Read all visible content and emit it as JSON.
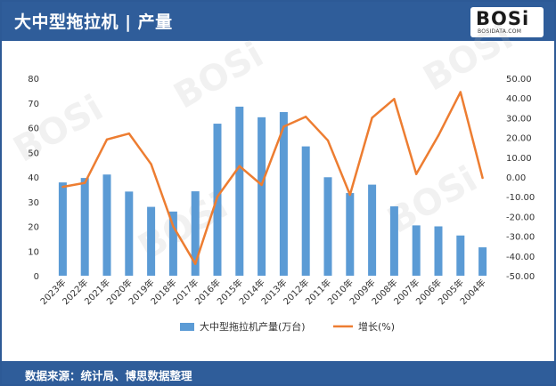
{
  "header": {
    "title": "大中型拖拉机 | 产量",
    "logo_text": "BOSi",
    "logo_sub": "BOSIDATA.COM"
  },
  "footer": {
    "source": "数据来源：统计局、博思数据整理"
  },
  "colors": {
    "header_bg": "#2f5d9a",
    "bar": "#5b9bd5",
    "line": "#ed7d31"
  },
  "chart_data": {
    "type": "bar",
    "categories": [
      "2023年",
      "2022年",
      "2021年",
      "2020年",
      "2019年",
      "2018年",
      "2017年",
      "2016年",
      "2015年",
      "2014年",
      "2013年",
      "2012年",
      "2011年",
      "2010年",
      "2009年",
      "2008年",
      "2007年",
      "2006年",
      "2005年",
      "2004年"
    ],
    "series": [
      {
        "name": "大中型拖拉机产量(万台)",
        "type": "bar",
        "axis": "left",
        "values": [
          37.8,
          39.6,
          41.0,
          34.1,
          27.9,
          26.0,
          34.2,
          61.6,
          68.5,
          64.2,
          66.3,
          52.4,
          39.9,
          33.5,
          36.9,
          28.1,
          20.4,
          20.0,
          16.3,
          11.5
        ]
      },
      {
        "name": "增长(%)",
        "type": "line",
        "axis": "right",
        "values": [
          -5.0,
          -3.0,
          19.0,
          22.0,
          6.5,
          -25.0,
          -44.0,
          -10.0,
          5.5,
          -4.0,
          25.5,
          30.5,
          18.5,
          -9.0,
          30.0,
          39.5,
          1.5,
          21.0,
          43.0,
          -0.5
        ]
      }
    ],
    "left_axis": {
      "ylim": [
        0,
        80
      ],
      "ticks": [
        "0",
        "10",
        "20",
        "30",
        "40",
        "50",
        "60",
        "70",
        "80"
      ]
    },
    "right_axis": {
      "ylim": [
        -50,
        50
      ],
      "ticks": [
        "-50.00",
        "-40.00",
        "-30.00",
        "-20.00",
        "-10.00",
        "0.00",
        "10.00",
        "20.00",
        "30.00",
        "40.00",
        "50.00"
      ]
    },
    "legend": "bottom",
    "grid": false
  }
}
